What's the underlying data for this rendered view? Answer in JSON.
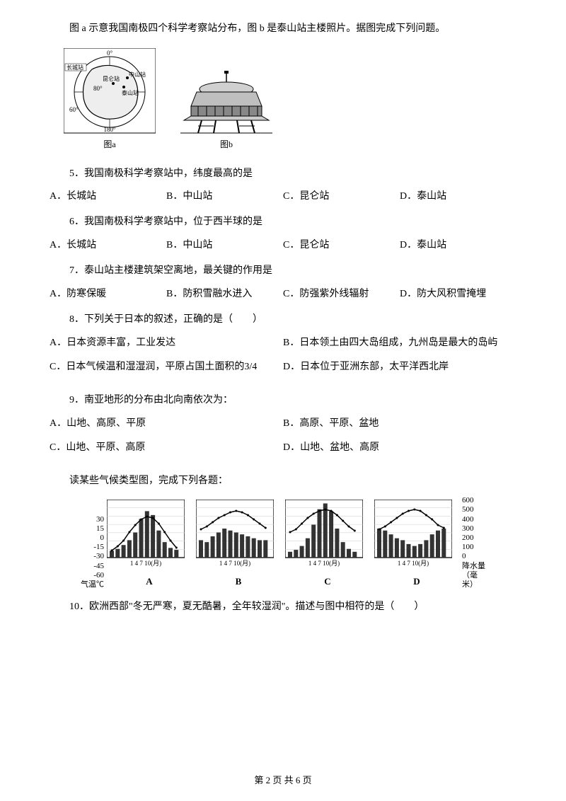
{
  "intro": "图 a 示意我国南极四个科学考察站分布，图 b 是泰山站主楼照片。据图完成下列问题。",
  "figA": {
    "caption": "图a",
    "labels": {
      "changcheng": "长城站",
      "kunlun": "昆仑站",
      "zhongshan": "中山站",
      "taishan": "泰山站",
      "deg0": "0°",
      "deg60": "60°",
      "deg80": "80°",
      "deg180": "180°"
    }
  },
  "figB": {
    "caption": "图b"
  },
  "q5": {
    "text": "5．我国南极科学考察站中，纬度最高的是",
    "A": "A．长城站",
    "B": "B．中山站",
    "C": "C．昆仑站",
    "D": "D．泰山站"
  },
  "q6": {
    "text": "6．我国南极科学考察站中，位于西半球的是",
    "A": "A．长城站",
    "B": "B．中山站",
    "C": "C．昆仑站",
    "D": "D．泰山站"
  },
  "q7": {
    "text": "7．泰山站主楼建筑架空离地，最关键的作用是",
    "A": "A．防寒保暖",
    "B": "B．防积雪融水进入",
    "C": "C．防强紫外线辐射",
    "D": "D．防大风积雪掩埋"
  },
  "q8": {
    "text": "8．下列关于日本的叙述，正确的是（　　）",
    "A": "A．日本资源丰富，工业发达",
    "B": "B．日本领土由四大岛组成，九州岛是最大的岛屿",
    "C": "C．日本气候温和湿湿润，平原占国土面积的3/4",
    "D": "D．日本位于亚洲东部，太平洋西北岸"
  },
  "q9": {
    "text": "9．南亚地形的分布由北向南依次为：",
    "A": "A．山地、高原、平原",
    "B": "B．高原、平原、盆地",
    "C": "C．山地、平原、高原",
    "D": "D．山地、盆地、高原"
  },
  "climateIntro": "读某些气候类型图，完成下列各题：",
  "climate": {
    "leftAxisLabel": "气温℃",
    "rightAxisLabel": "降水量（毫米）",
    "tempTicks": [
      "30",
      "15",
      "0",
      "-15",
      "-30",
      "-45",
      "-60"
    ],
    "precipTicks": [
      "600",
      "500",
      "400",
      "300",
      "200",
      "100",
      "0"
    ],
    "xTicks": "1  4  7  10(月)",
    "panels": [
      {
        "label": "A",
        "tempY": [
          72,
          66,
          58,
          46,
          36,
          28,
          24,
          26,
          34,
          46,
          58,
          68
        ],
        "precip": [
          7,
          9,
          13,
          18,
          26,
          40,
          48,
          44,
          28,
          16,
          10,
          8
        ]
      },
      {
        "label": "B",
        "tempY": [
          42,
          38,
          32,
          26,
          22,
          18,
          16,
          18,
          22,
          28,
          34,
          40
        ],
        "precip": [
          18,
          16,
          22,
          26,
          30,
          28,
          26,
          24,
          22,
          20,
          18,
          18
        ]
      },
      {
        "label": "C",
        "tempY": [
          46,
          42,
          34,
          26,
          20,
          16,
          14,
          16,
          22,
          30,
          38,
          44
        ],
        "precip": [
          6,
          8,
          12,
          20,
          34,
          50,
          56,
          48,
          30,
          16,
          9,
          6
        ]
      },
      {
        "label": "D",
        "tempY": [
          42,
          38,
          32,
          26,
          20,
          16,
          14,
          16,
          22,
          28,
          36,
          40
        ],
        "precip": [
          30,
          28,
          24,
          20,
          18,
          14,
          12,
          14,
          18,
          24,
          28,
          30
        ]
      }
    ],
    "chart": {
      "w": 110,
      "h": 82,
      "barW": 6,
      "barGap": 2.3,
      "barColor": "#333333",
      "lineColor": "#000000",
      "border": "#000000",
      "grid": "#cccccc"
    }
  },
  "q10": {
    "text": "10．欧洲西部\"冬无严寒，夏无酷暑，全年较湿润\"。描述与图中相符的是（　　）"
  },
  "footer": "第 2 页 共 6 页"
}
